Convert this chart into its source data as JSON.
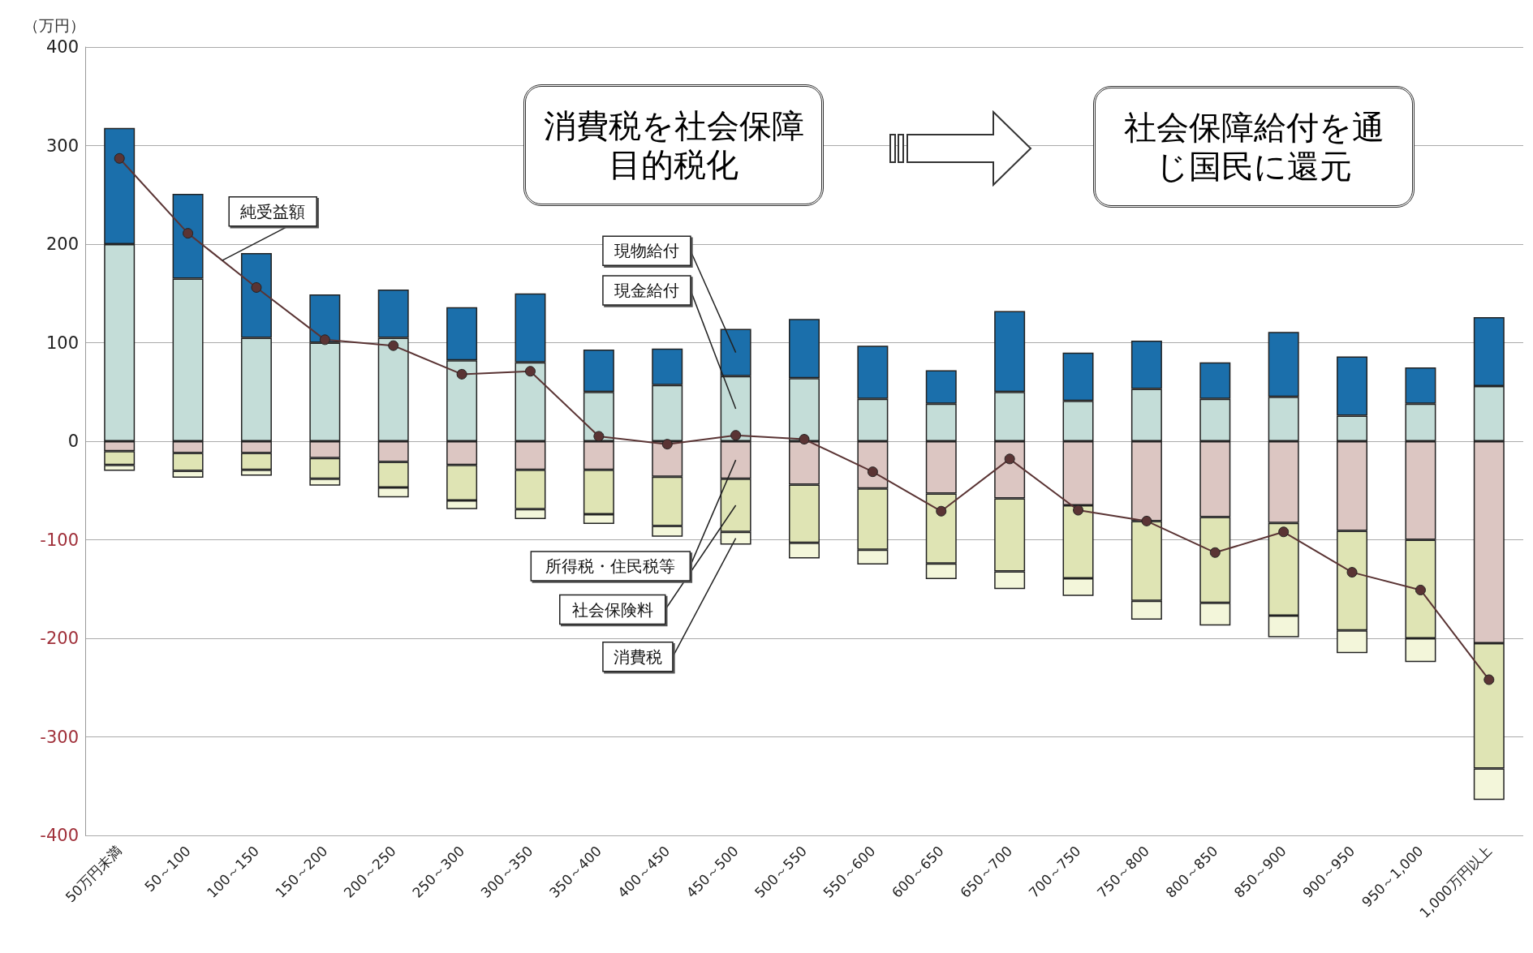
{
  "chart_data": {
    "type": "bar",
    "stacked": true,
    "ylabel": "（万円）",
    "grid": "y",
    "marker": "circle",
    "categories": [
      "50万円未満",
      "50～100",
      "100～150",
      "150～200",
      "200～250",
      "250～300",
      "300～350",
      "350～400",
      "400～450",
      "450～500",
      "500～550",
      "550～600",
      "600～650",
      "650～700",
      "700～750",
      "750～800",
      "800～850",
      "850～900",
      "900～950",
      "950～1,000",
      "1,000万円以上"
    ],
    "series": [
      {
        "name": "現金給付",
        "color": "#c4ddd8",
        "values": [
          200,
          165,
          105,
          100,
          105,
          82,
          80,
          50,
          57,
          66,
          64,
          43,
          38,
          50,
          41,
          53,
          43,
          45,
          26,
          38,
          56
        ]
      },
      {
        "name": "現物給付",
        "color": "#1b6fab",
        "values": [
          118,
          86,
          86,
          49,
          49,
          54,
          70,
          43,
          37,
          48,
          60,
          54,
          34,
          82,
          49,
          49,
          37,
          66,
          60,
          37,
          70
        ]
      },
      {
        "name": "所得税・住民税等",
        "color": "#dcc6c2",
        "values": [
          -10,
          -12,
          -12,
          -17,
          -21,
          -24,
          -29,
          -29,
          -36,
          -38,
          -44,
          -48,
          -53,
          -58,
          -65,
          -81,
          -77,
          -83,
          -91,
          -100,
          -205
        ]
      },
      {
        "name": "社会保険料",
        "color": "#dfe4b4",
        "values": [
          -14,
          -18,
          -17,
          -21,
          -26,
          -36,
          -40,
          -45,
          -50,
          -54,
          -59,
          -62,
          -71,
          -74,
          -74,
          -81,
          -87,
          -94,
          -101,
          -100,
          -127
        ]
      },
      {
        "name": "消費税",
        "color": "#f3f6da",
        "values": [
          -6,
          -7,
          -6,
          -7,
          -10,
          -9,
          -10,
          -10,
          -11,
          -13,
          -16,
          -15,
          -16,
          -18,
          -18,
          -19,
          -23,
          -22,
          -23,
          -24,
          -32
        ]
      },
      {
        "name": "純受益額",
        "type": "line",
        "color": "#5a3434",
        "values": [
          287,
          211,
          156,
          103,
          97,
          68,
          71,
          5,
          -3,
          6,
          2,
          -31,
          -71,
          -18,
          -70,
          -81,
          -113,
          -92,
          -133,
          -151,
          -242
        ]
      }
    ],
    "ylim": [
      -400,
      400
    ],
    "yticks": [
      -400,
      -300,
      -200,
      -100,
      0,
      100,
      200,
      300,
      400
    ],
    "annotations": [
      "消費税を社会保障目的税化",
      "社会保障給付を通じ国民に還元"
    ]
  }
}
